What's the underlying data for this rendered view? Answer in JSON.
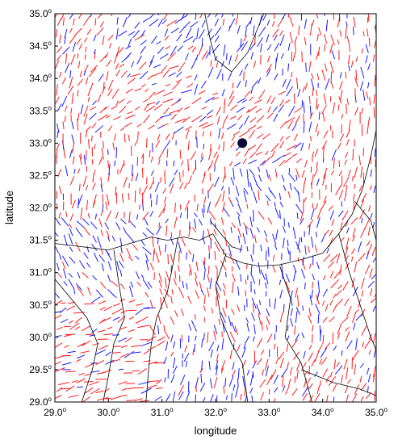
{
  "chart_data": {
    "type": "map",
    "xlabel": "longitude",
    "ylabel": "latitude",
    "xlim": [
      29.0,
      35.0
    ],
    "ylim": [
      29.0,
      35.0
    ],
    "x_ticks": [
      "29.0",
      "30.0",
      "31.0",
      "32.0",
      "33.0",
      "34.0",
      "35.0"
    ],
    "y_ticks": [
      "29.0",
      "29.5",
      "30.0",
      "30.5",
      "31.0",
      "31.5",
      "32.0",
      "32.5",
      "33.0",
      "33.5",
      "34.0",
      "34.5",
      "35.0"
    ],
    "degree_mark": "o",
    "station": {
      "lon": 32.5,
      "lat": 33.0,
      "color": "#0a0a3a"
    },
    "series": [
      {
        "color": "#ff1a1a"
      },
      {
        "color": "#1a1aff"
      }
    ],
    "coastline_color": "#000000",
    "vector_field_regions": [
      {
        "lon": [
          29.0,
          30.2
        ],
        "lat": [
          33.6,
          35.0
        ],
        "angle": 65,
        "color": "red"
      },
      {
        "lon": [
          30.2,
          31.6
        ],
        "lat": [
          34.2,
          35.0
        ],
        "angle": 50,
        "color": "blue"
      },
      {
        "lon": [
          31.6,
          33.4
        ],
        "lat": [
          33.8,
          35.0
        ],
        "angle": 70,
        "color": "blue"
      },
      {
        "lon": [
          33.4,
          35.0
        ],
        "lat": [
          33.6,
          35.0
        ],
        "angle": 90,
        "color": "red"
      },
      {
        "lon": [
          29.6,
          32.0
        ],
        "lat": [
          33.2,
          34.2
        ],
        "angle": 35,
        "color": "red"
      },
      {
        "lon": [
          29.0,
          30.4
        ],
        "lat": [
          31.8,
          33.4
        ],
        "angle": 85,
        "color": "red"
      },
      {
        "lon": [
          30.4,
          32.2
        ],
        "lat": [
          32.0,
          33.2
        ],
        "angle": 75,
        "color": "red"
      },
      {
        "lon": [
          32.2,
          33.6
        ],
        "lat": [
          32.6,
          33.8
        ],
        "angle": 45,
        "color": "red"
      },
      {
        "lon": [
          33.6,
          35.0
        ],
        "lat": [
          32.0,
          33.6
        ],
        "angle": 80,
        "color": "red"
      },
      {
        "lon": [
          31.6,
          33.6
        ],
        "lat": [
          31.6,
          32.6
        ],
        "angle": 110,
        "color": "blue"
      },
      {
        "lon": [
          29.0,
          30.8
        ],
        "lat": [
          30.6,
          31.8
        ],
        "angle": 120,
        "color": "blue"
      },
      {
        "lon": [
          30.8,
          32.4
        ],
        "lat": [
          30.0,
          31.6
        ],
        "angle": 100,
        "color": "red"
      },
      {
        "lon": [
          32.4,
          34.0
        ],
        "lat": [
          30.0,
          31.6
        ],
        "angle": 95,
        "color": "blue"
      },
      {
        "lon": [
          34.0,
          35.0
        ],
        "lat": [
          30.0,
          32.0
        ],
        "angle": 60,
        "color": "red"
      },
      {
        "lon": [
          29.0,
          31.0
        ],
        "lat": [
          29.0,
          30.6
        ],
        "angle": 20,
        "color": "red"
      },
      {
        "lon": [
          31.0,
          32.8
        ],
        "lat": [
          29.0,
          30.2
        ],
        "angle": 80,
        "color": "blue"
      },
      {
        "lon": [
          32.8,
          35.0
        ],
        "lat": [
          29.0,
          30.2
        ],
        "angle": 70,
        "color": "red"
      }
    ]
  }
}
